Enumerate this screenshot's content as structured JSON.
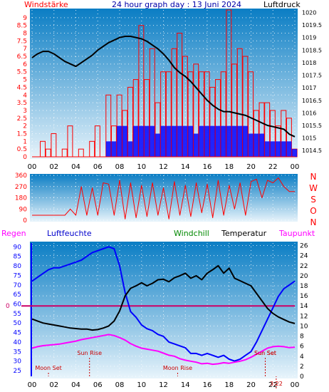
{
  "header": {
    "left_label": "Windstärke",
    "title": "24 hour graph day : 13 Juni 2024",
    "right_label": "Luftdruck"
  },
  "lower_header": {
    "regen": "Regen",
    "luftfeuchte": "Luftfeuchte",
    "windchill": "Windchill",
    "temperatur": "Temperatur",
    "taupunkt": "Taupunkt"
  },
  "direction_labels": [
    "N",
    "W",
    "S",
    "O",
    "N"
  ],
  "colors": {
    "background": "#ffffff",
    "panel_top": "#0a7dc4",
    "panel_bottom": "#e8f4fb",
    "wind": "#ff0000",
    "gust_avg": "#0000ff",
    "pressure": "#000000",
    "humidity": "#0000ff",
    "windchill": "#00aa00",
    "temperature": "#000000",
    "dewpoint": "#ff00ff",
    "rain_zero_line": "#cc0066",
    "left_axis": "#ff0000",
    "humidity_axis": "#0000ff",
    "title": "#0000aa"
  },
  "chart_data": [
    {
      "type": "line",
      "name": "wind_pressure",
      "x_ticks": [
        "00",
        "02",
        "04",
        "06",
        "08",
        "10",
        "12",
        "14",
        "16",
        "18",
        "20",
        "22",
        "00"
      ],
      "y_left_ticks": [
        "0",
        "0.5",
        "1",
        "1.5",
        "2",
        "2.5",
        "3",
        "3.5",
        "4",
        "4.5",
        "5",
        "5.5",
        "6",
        "6.5",
        "7",
        "7.5",
        "8",
        "8.5",
        "9"
      ],
      "y_left_range": [
        0,
        9.5
      ],
      "y_right_ticks": [
        "1014.5",
        "1015",
        "1015.5",
        "1016",
        "1016.5",
        "1017",
        "1017.5",
        "1018",
        "1018.5",
        "1019",
        "1019.5",
        "1020"
      ],
      "y_right_range": [
        1014.25,
        1020.1
      ],
      "pressure_hour": [
        0,
        0.5,
        1,
        1.5,
        2,
        2.5,
        3,
        3.5,
        4,
        4.5,
        5,
        5.5,
        6,
        6.5,
        7,
        7.5,
        8,
        8.5,
        9,
        9.5,
        10,
        10.5,
        11,
        11.5,
        12,
        12.5,
        13,
        13.5,
        14,
        14.5,
        15,
        15.5,
        16,
        16.5,
        17,
        17.5,
        18,
        18.5,
        19,
        19.5,
        20,
        20.5,
        21,
        21.5,
        22,
        22.5,
        23,
        23.5,
        24
      ],
      "pressure": [
        1018.2,
        1018.35,
        1018.45,
        1018.45,
        1018.35,
        1018.2,
        1018.05,
        1017.95,
        1017.85,
        1018.0,
        1018.15,
        1018.3,
        1018.5,
        1018.65,
        1018.8,
        1018.9,
        1019.0,
        1019.05,
        1019.05,
        1019.0,
        1018.95,
        1018.85,
        1018.7,
        1018.55,
        1018.35,
        1018.1,
        1017.8,
        1017.6,
        1017.45,
        1017.25,
        1017.0,
        1016.75,
        1016.5,
        1016.3,
        1016.15,
        1016.05,
        1016.05,
        1016.0,
        1015.95,
        1015.9,
        1015.8,
        1015.7,
        1015.6,
        1015.5,
        1015.45,
        1015.4,
        1015.35,
        1015.15,
        1015.05
      ],
      "wind_peak_hour": [
        0,
        0.5,
        1,
        1.5,
        2,
        2.5,
        3,
        3.5,
        4,
        4.5,
        5,
        5.5,
        6,
        6.5,
        7,
        7.5,
        8,
        8.5,
        9,
        9.5,
        10,
        10.5,
        11,
        11.5,
        12,
        12.5,
        13,
        13.5,
        14,
        14.5,
        15,
        15.5,
        16,
        16.5,
        17,
        17.5,
        18,
        18.5,
        19,
        19.5,
        20,
        20.5,
        21,
        21.5,
        22,
        22.5,
        23,
        23.5,
        24
      ],
      "wind_peak": [
        0,
        0,
        1,
        0.5,
        1.5,
        0,
        0.5,
        2,
        0,
        0.5,
        0,
        1,
        2,
        0,
        4,
        2,
        4,
        3,
        4.5,
        5,
        8.5,
        5,
        7,
        3.5,
        5.5,
        5.5,
        7,
        8,
        6.5,
        5.5,
        6,
        5.5,
        5.5,
        4.5,
        5,
        5.5,
        9.5,
        6,
        7,
        6.5,
        5.5,
        3,
        3.5,
        3.5,
        3,
        2,
        3,
        2.5,
        0.5
      ],
      "wind_avg": [
        0,
        0,
        0,
        0,
        0,
        0,
        0,
        0,
        0,
        0,
        0,
        0,
        0,
        0,
        1,
        1,
        2,
        2,
        1,
        2,
        2,
        2,
        2,
        1.5,
        2,
        2,
        2,
        2,
        2,
        2,
        1.5,
        2,
        2,
        2,
        2,
        2,
        2,
        2,
        2,
        2,
        1.5,
        1.5,
        1.5,
        1,
        1,
        1,
        1,
        1,
        0.5
      ]
    },
    {
      "type": "line",
      "name": "wind_direction",
      "y_ticks": [
        "0",
        "90",
        "180",
        "270",
        "360"
      ],
      "y_range": [
        0,
        360
      ],
      "hour": [
        0,
        0.5,
        1,
        1.5,
        2,
        2.5,
        3,
        3.5,
        4,
        4.5,
        5,
        5.5,
        6,
        6.5,
        7,
        7.5,
        8,
        8.5,
        9,
        9.5,
        10,
        10.5,
        11,
        11.5,
        12,
        12.5,
        13,
        13.5,
        14,
        14.5,
        15,
        15.5,
        16,
        16.5,
        17,
        17.5,
        18,
        18.5,
        19,
        19.5,
        20,
        20.5,
        21,
        21.5,
        22,
        22.5,
        23,
        23.5,
        24
      ],
      "direction": [
        40,
        40,
        40,
        40,
        40,
        40,
        40,
        90,
        40,
        270,
        40,
        260,
        40,
        300,
        290,
        40,
        320,
        10,
        300,
        20,
        280,
        30,
        300,
        40,
        260,
        10,
        310,
        40,
        280,
        30,
        300,
        60,
        290,
        20,
        320,
        40,
        280,
        90,
        300,
        40,
        310,
        330,
        180,
        320,
        300,
        340,
        270,
        230,
        230
      ]
    },
    {
      "type": "line",
      "name": "temperature_humidity",
      "x_ticks": [
        "00",
        "02",
        "04",
        "06",
        "08",
        "10",
        "12",
        "14",
        "16",
        "18",
        "20",
        "22",
        "00"
      ],
      "humidity_ticks": [
        "25",
        "30",
        "35",
        "40",
        "45",
        "50",
        "55",
        "60",
        "65",
        "70",
        "75",
        "80",
        "85",
        "90"
      ],
      "humidity_range": [
        22,
        92
      ],
      "temperature_ticks": [
        "0",
        "2",
        "4",
        "6",
        "8",
        "10",
        "12",
        "14",
        "16",
        "18",
        "20",
        "22",
        "24",
        "26"
      ],
      "temperature_range": [
        0,
        26.5
      ],
      "rain_ticks": [
        "0"
      ],
      "rain_value": 0,
      "hour": [
        0,
        0.5,
        1,
        1.5,
        2,
        2.5,
        3,
        3.5,
        4,
        4.5,
        5,
        5.5,
        6,
        6.5,
        7,
        7.5,
        8,
        8.5,
        9,
        9.5,
        10,
        10.5,
        11,
        11.5,
        12,
        12.5,
        13,
        13.5,
        14,
        14.5,
        15,
        15.5,
        16,
        16.5,
        17,
        17.5,
        18,
        18.5,
        19,
        19.5,
        20,
        20.5,
        21,
        21.5,
        22,
        22.5,
        23,
        23.5,
        24
      ],
      "humidity": [
        72,
        74,
        76,
        78,
        79,
        79,
        80,
        81,
        82,
        83,
        85,
        87,
        88,
        89,
        90,
        89,
        80,
        66,
        56,
        53,
        49,
        47,
        46,
        44,
        43,
        40,
        39,
        38,
        37,
        34,
        34,
        33,
        34,
        33,
        32,
        33,
        31,
        30,
        31,
        33,
        35,
        40,
        46,
        52,
        58,
        64,
        68,
        70,
        72
      ],
      "temperature": [
        11.4,
        11.0,
        10.6,
        10.4,
        10.2,
        10.0,
        9.8,
        9.6,
        9.5,
        9.4,
        9.4,
        9.2,
        9.3,
        9.6,
        10.0,
        11.0,
        13.0,
        16.0,
        17.5,
        18.0,
        18.6,
        18.0,
        18.5,
        19.2,
        19.3,
        18.8,
        19.6,
        20.0,
        20.5,
        19.5,
        20.0,
        19.2,
        20.5,
        21.2,
        22.0,
        20.5,
        21.5,
        19.5,
        19.0,
        18.5,
        18.0,
        16.5,
        15.0,
        13.5,
        12.5,
        11.8,
        11.3,
        10.8,
        10.5
      ],
      "dewpoint": [
        5.6,
        5.9,
        6.1,
        6.2,
        6.3,
        6.4,
        6.6,
        6.8,
        7.0,
        7.3,
        7.5,
        7.7,
        7.9,
        8.1,
        8.3,
        8.1,
        7.7,
        7.2,
        6.5,
        6.0,
        5.6,
        5.4,
        5.2,
        5.0,
        4.6,
        4.2,
        4.0,
        3.5,
        3.2,
        3.0,
        2.8,
        2.5,
        2.6,
        2.4,
        2.5,
        2.7,
        2.6,
        2.8,
        3.0,
        3.3,
        3.8,
        4.4,
        5.0,
        5.6,
        5.9,
        6.0,
        5.9,
        5.7,
        5.8
      ],
      "annotations": [
        {
          "label": "Sun Rise",
          "hour": 5.25
        },
        {
          "label": "Moon Set",
          "hour": 1.5
        },
        {
          "label": "Moon Rise",
          "hour": 13.3
        },
        {
          "label": "Sun Set",
          "hour": 21.3
        },
        {
          "label": "Sun Set",
          "hour": 21.3
        },
        {
          "label": "3:22",
          "hour": 22.3
        }
      ]
    }
  ]
}
